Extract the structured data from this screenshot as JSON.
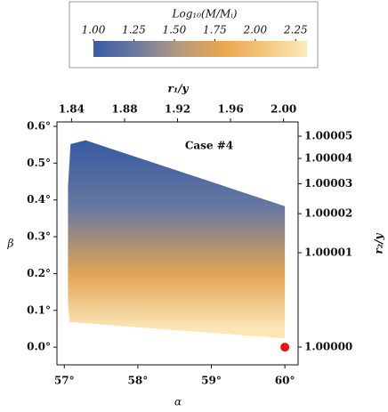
{
  "chart_data": {
    "type": "region",
    "annotation": "Case #4",
    "x_label": "α",
    "y_label": "β",
    "x2_label": "r₁/y",
    "y2_label": "r₂/y",
    "xlim": [
      56.9,
      60.18
    ],
    "xticks": [
      {
        "value": 57,
        "label": "57°"
      },
      {
        "value": 58,
        "label": "58°"
      },
      {
        "value": 59,
        "label": "59°"
      },
      {
        "value": 60,
        "label": "60°"
      }
    ],
    "ylim": [
      -0.048,
      0.612
    ],
    "yticks": [
      {
        "value": 0.0,
        "label": "0.0°"
      },
      {
        "value": 0.1,
        "label": "0.1°"
      },
      {
        "value": 0.2,
        "label": "0.2°"
      },
      {
        "value": 0.3,
        "label": "0.3°"
      },
      {
        "value": 0.4,
        "label": "0.4°"
      },
      {
        "value": 0.5,
        "label": "0.5°"
      },
      {
        "value": 0.6,
        "label": "0.6°"
      }
    ],
    "x2lim": [
      1.829,
      2.011
    ],
    "x2ticks": [
      {
        "value": 1.84,
        "label": "1.84"
      },
      {
        "value": 1.88,
        "label": "1.88"
      },
      {
        "value": 1.92,
        "label": "1.92"
      },
      {
        "value": 1.96,
        "label": "1.96"
      },
      {
        "value": 2.0,
        "label": "2.00"
      }
    ],
    "y2scale": "sqrt",
    "y2lim": [
      1.0,
      1.000057
    ],
    "y2ticks": [
      {
        "value": 1.0,
        "label": "1.00000"
      },
      {
        "value": 1.00001,
        "label": "1.00001"
      },
      {
        "value": 1.00002,
        "label": "1.00002"
      },
      {
        "value": 1.00003,
        "label": "1.00003"
      },
      {
        "value": 1.00004,
        "label": "1.00004"
      },
      {
        "value": 1.00005,
        "label": "1.00005"
      }
    ],
    "colorbar": {
      "label": "Log₁₀(M/Mᵢ)",
      "clim": [
        1.0,
        2.32
      ],
      "ticks": [
        {
          "value": 1.0,
          "label": "1.00"
        },
        {
          "value": 1.25,
          "label": "1.25"
        },
        {
          "value": 1.5,
          "label": "1.50"
        },
        {
          "value": 1.75,
          "label": "1.75"
        },
        {
          "value": 2.0,
          "label": "2.00"
        },
        {
          "value": 2.25,
          "label": "2.25"
        }
      ],
      "colors": [
        "#3a5ca2",
        "#6a7aa0",
        "#b59a7e",
        "#e9a64c",
        "#f5c57c",
        "#fde9bb"
      ]
    },
    "region": {
      "alpha": [
        57.085,
        57.29,
        60.0,
        60.0,
        57.07,
        57.05,
        57.05
      ],
      "beta": [
        0.552,
        0.562,
        0.383,
        0.024,
        0.068,
        0.121,
        0.436
      ],
      "z_by_beta": {
        "beta": [
          0.55,
          0.38,
          0.2,
          0.05
        ],
        "z": [
          1.0,
          1.25,
          1.75,
          2.3
        ]
      }
    },
    "point": {
      "alpha": 60.0,
      "beta": 0.0,
      "color": "#ee1111"
    }
  }
}
